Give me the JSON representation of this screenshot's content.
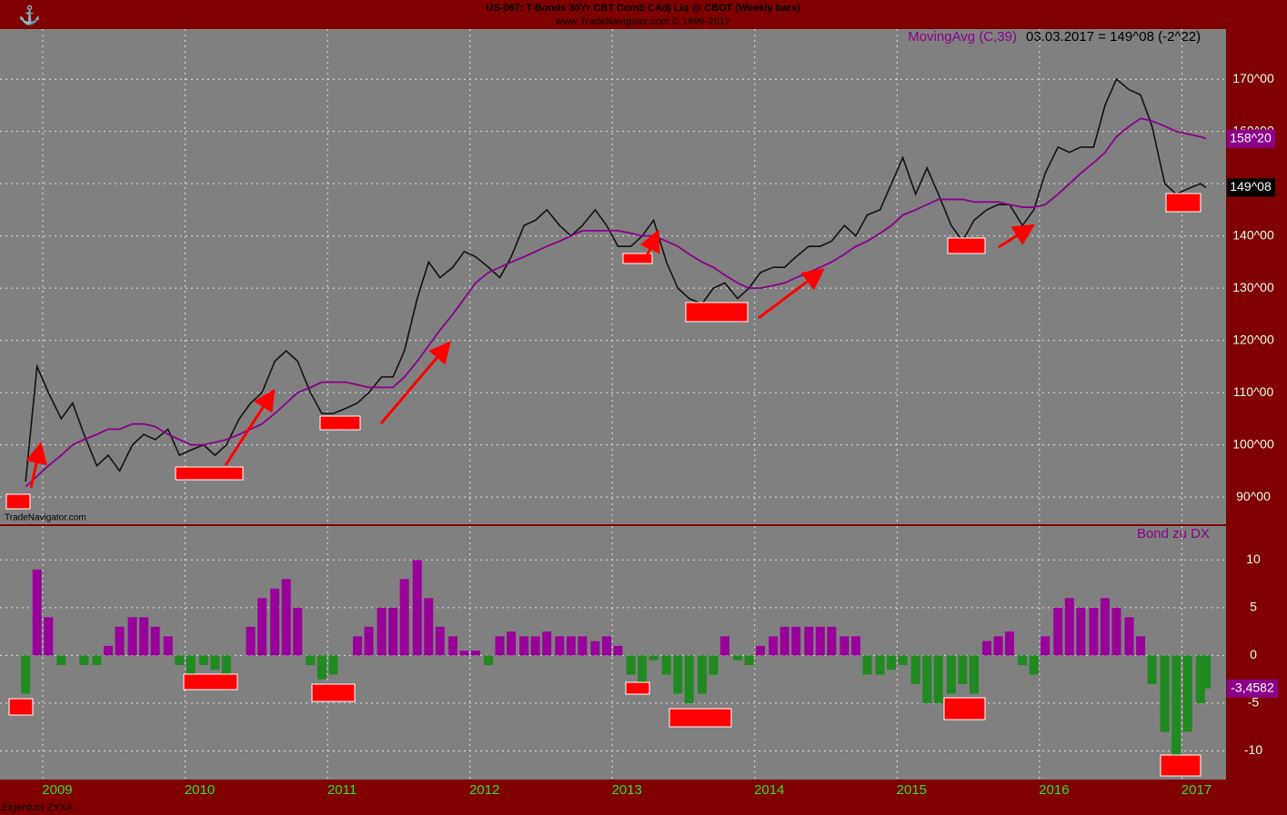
{
  "chart_data": [
    {
      "type": "line",
      "title": "US-067:  T-Bonds 30Yr CBT Comb CAdj Liq @ CBOT  (Weekly bars)",
      "subtitle": "www.TradeNavigator.com © 1999-2017",
      "watermark": "TradeNavigator.com",
      "legend_text": "MovingAvg (C,39)",
      "last_text": "03.03.2017 = 149^08 (-2^22)",
      "x": [
        2008.88,
        2008.96,
        2009.04,
        2009.13,
        2009.21,
        2009.29,
        2009.38,
        2009.46,
        2009.54,
        2009.63,
        2009.71,
        2009.79,
        2009.88,
        2009.96,
        2010.04,
        2010.13,
        2010.21,
        2010.29,
        2010.38,
        2010.46,
        2010.54,
        2010.63,
        2010.71,
        2010.79,
        2010.88,
        2010.96,
        2011.04,
        2011.13,
        2011.21,
        2011.29,
        2011.38,
        2011.46,
        2011.54,
        2011.63,
        2011.71,
        2011.79,
        2011.88,
        2011.96,
        2012.04,
        2012.13,
        2012.21,
        2012.29,
        2012.38,
        2012.46,
        2012.54,
        2012.63,
        2012.71,
        2012.79,
        2012.88,
        2012.96,
        2013.04,
        2013.13,
        2013.21,
        2013.29,
        2013.38,
        2013.46,
        2013.54,
        2013.63,
        2013.71,
        2013.79,
        2013.88,
        2013.96,
        2014.04,
        2014.13,
        2014.21,
        2014.29,
        2014.38,
        2014.46,
        2014.54,
        2014.63,
        2014.71,
        2014.79,
        2014.88,
        2014.96,
        2015.04,
        2015.13,
        2015.21,
        2015.29,
        2015.38,
        2015.46,
        2015.54,
        2015.63,
        2015.71,
        2015.79,
        2015.88,
        2015.96,
        2016.04,
        2016.13,
        2016.21,
        2016.29,
        2016.38,
        2016.46,
        2016.54,
        2016.63,
        2016.71,
        2016.79,
        2016.88,
        2016.96,
        2017.04,
        2017.13,
        2017.17
      ],
      "series": [
        {
          "name": "Close",
          "color": "#111111",
          "badge": "149^08",
          "values": [
            93,
            115,
            110,
            105,
            108,
            102,
            96,
            98,
            95,
            100,
            102,
            101,
            103,
            98,
            99,
            100,
            98,
            100,
            105,
            108,
            110,
            116,
            118,
            116,
            110,
            106,
            106,
            107,
            108,
            110,
            113,
            113,
            118,
            128,
            135,
            132,
            134,
            137,
            136,
            134,
            132,
            136,
            142,
            143,
            145,
            142,
            140,
            142,
            145,
            142,
            138,
            138,
            140,
            143,
            135,
            130,
            128,
            127,
            130,
            131,
            128,
            130,
            133,
            134,
            134,
            136,
            138,
            138,
            139,
            142,
            140,
            144,
            145,
            150,
            155,
            148,
            153,
            148,
            142,
            139,
            143,
            145,
            146,
            146,
            142,
            145,
            152,
            157,
            156,
            157,
            157,
            165,
            170,
            168,
            167,
            161,
            150,
            148,
            149,
            150,
            149.25
          ]
        },
        {
          "name": "MovingAvg",
          "color": "#8b008b",
          "badge": "158^20",
          "values": [
            92,
            94,
            96,
            98,
            100,
            101,
            102,
            103,
            103,
            104,
            104,
            103.5,
            102,
            101,
            100,
            100,
            100.5,
            101,
            102,
            103,
            104,
            106,
            108,
            110,
            111,
            112,
            112,
            112,
            111.5,
            111,
            111,
            111,
            113,
            116,
            119,
            122,
            125,
            128,
            131,
            133,
            134,
            135,
            136,
            137,
            138,
            139,
            140,
            141,
            141,
            141,
            141,
            140.5,
            140,
            140,
            139,
            138,
            136.5,
            135,
            134,
            132.5,
            131,
            130,
            130,
            130.5,
            131,
            132,
            133,
            134,
            135,
            136.5,
            138,
            139,
            140.5,
            142,
            144,
            145,
            146,
            147,
            147,
            147,
            146.5,
            146.5,
            146.5,
            146,
            145.5,
            145.5,
            146,
            148,
            150,
            152,
            154,
            156,
            159,
            161,
            162.5,
            162,
            161,
            160,
            159.5,
            159,
            158.625
          ]
        }
      ],
      "xlim": [
        2008.7,
        2017.31
      ],
      "ylim": [
        84.8,
        179.6
      ],
      "yticks": [
        {
          "value": 90,
          "label": "90^00"
        },
        {
          "value": 100,
          "label": "100^00"
        },
        {
          "value": 110,
          "label": "110^00"
        },
        {
          "value": 120,
          "label": "120^00"
        },
        {
          "value": 130,
          "label": "130^00"
        },
        {
          "value": 140,
          "label": "140^00"
        },
        {
          "value": 150,
          "label": "150^00"
        },
        {
          "value": 160,
          "label": "160^00"
        },
        {
          "value": 170,
          "label": "170^00"
        }
      ],
      "grid": true
    },
    {
      "type": "bar",
      "legend_text": "Bond zu DX",
      "footer": "Eigentum ZYXA",
      "pos_color": "#990099",
      "neg_color": "#1f8a1f",
      "badge": "-3,4582",
      "x": [
        2008.88,
        2008.96,
        2009.04,
        2009.13,
        2009.21,
        2009.29,
        2009.38,
        2009.46,
        2009.54,
        2009.63,
        2009.71,
        2009.79,
        2009.88,
        2009.96,
        2010.04,
        2010.13,
        2010.21,
        2010.29,
        2010.38,
        2010.46,
        2010.54,
        2010.63,
        2010.71,
        2010.79,
        2010.88,
        2010.96,
        2011.04,
        2011.13,
        2011.21,
        2011.29,
        2011.38,
        2011.46,
        2011.54,
        2011.63,
        2011.71,
        2011.79,
        2011.88,
        2011.96,
        2012.04,
        2012.13,
        2012.21,
        2012.29,
        2012.38,
        2012.46,
        2012.54,
        2012.63,
        2012.71,
        2012.79,
        2012.88,
        2012.96,
        2013.04,
        2013.13,
        2013.21,
        2013.29,
        2013.38,
        2013.46,
        2013.54,
        2013.63,
        2013.71,
        2013.79,
        2013.88,
        2013.96,
        2014.04,
        2014.13,
        2014.21,
        2014.29,
        2014.38,
        2014.46,
        2014.54,
        2014.63,
        2014.71,
        2014.79,
        2014.88,
        2014.96,
        2015.04,
        2015.13,
        2015.21,
        2015.29,
        2015.38,
        2015.46,
        2015.54,
        2015.63,
        2015.71,
        2015.79,
        2015.88,
        2015.96,
        2016.04,
        2016.13,
        2016.21,
        2016.29,
        2016.38,
        2016.46,
        2016.54,
        2016.63,
        2016.71,
        2016.79,
        2016.88,
        2016.96,
        2017.04,
        2017.13,
        2017.17
      ],
      "values": [
        -4,
        9,
        4,
        -1,
        0,
        -1,
        -1,
        1,
        3,
        4,
        4,
        3,
        2,
        -1,
        -2,
        -1,
        -1.5,
        -2,
        0,
        3,
        6,
        7,
        8,
        5,
        -1,
        -2.5,
        -2,
        0,
        2,
        3,
        5,
        5,
        8,
        10,
        6,
        3,
        2,
        0.5,
        0.5,
        -1,
        2,
        2.5,
        2,
        2,
        2.5,
        2,
        2,
        2,
        1.5,
        2,
        1,
        -2,
        -3,
        -0.5,
        -2,
        -4,
        -5,
        -4,
        -2,
        2,
        -0.5,
        -1,
        1,
        2,
        3,
        3,
        3,
        3,
        3,
        2,
        2,
        -2,
        -2,
        -1.5,
        -1,
        -3,
        -5,
        -5,
        -4,
        -3,
        -4,
        1.5,
        2,
        2.5,
        -1,
        -2,
        2,
        5,
        6,
        5,
        5,
        6,
        5,
        4,
        2,
        -3,
        -8,
        -11,
        -8,
        -5,
        -3.4582
      ],
      "xlim": [
        2008.7,
        2017.31
      ],
      "ylim": [
        -13,
        13.55
      ],
      "yticks": [
        10,
        5,
        0,
        -5,
        -10
      ],
      "xticks": [
        2009,
        2010,
        2011,
        2012,
        2013,
        2014,
        2015,
        2016,
        2017
      ],
      "grid": true
    }
  ]
}
